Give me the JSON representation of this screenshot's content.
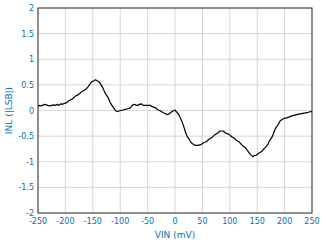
{
  "chart_data": {
    "type": "line",
    "xlabel": "VIN (mV)",
    "ylabel": "INL (|LSB|)",
    "xlim": [
      -250,
      250
    ],
    "ylim": [
      -2,
      2
    ],
    "xticks": [
      -250,
      -200,
      -150,
      -100,
      -50,
      0,
      50,
      100,
      150,
      200,
      250
    ],
    "yticks": [
      -2,
      -1.5,
      -1,
      -0.5,
      0,
      0.5,
      1,
      1.5,
      2
    ],
    "grid": true,
    "x": [
      -250,
      -248,
      -245,
      -242,
      -238,
      -235,
      -232,
      -228,
      -225,
      -222,
      -218,
      -215,
      -212,
      -208,
      -205,
      -202,
      -198,
      -195,
      -192,
      -188,
      -185,
      -182,
      -178,
      -175,
      -172,
      -168,
      -165,
      -162,
      -158,
      -155,
      -152,
      -148,
      -145,
      -142,
      -140,
      -138,
      -135,
      -132,
      -130,
      -128,
      -125,
      -122,
      -120,
      -118,
      -115,
      -112,
      -110,
      -108,
      -105,
      -102,
      -100,
      -98,
      -95,
      -92,
      -90,
      -88,
      -85,
      -82,
      -80,
      -78,
      -75,
      -72,
      -70,
      -68,
      -65,
      -62,
      -60,
      -58,
      -55,
      -52,
      -50,
      -48,
      -45,
      -42,
      -40,
      -38,
      -35,
      -32,
      -30,
      -28,
      -25,
      -22,
      -20,
      -18,
      -15,
      -12,
      -10,
      -8,
      -5,
      -2,
      0,
      2,
      5,
      8,
      10,
      12,
      15,
      18,
      20,
      22,
      25,
      28,
      30,
      32,
      35,
      38,
      40,
      42,
      45,
      48,
      50,
      52,
      55,
      58,
      60,
      62,
      65,
      68,
      70,
      72,
      75,
      78,
      80,
      82,
      85,
      88,
      90,
      92,
      95,
      98,
      100,
      102,
      105,
      108,
      110,
      112,
      115,
      118,
      120,
      122,
      125,
      128,
      130,
      132,
      135,
      138,
      140,
      142,
      145,
      148,
      150,
      152,
      155,
      158,
      160,
      162,
      165,
      168,
      170,
      172,
      175,
      178,
      180,
      182,
      185,
      188,
      190,
      192,
      195,
      198,
      200,
      202,
      205,
      208,
      210,
      212,
      215,
      218,
      220,
      222,
      225,
      228,
      230,
      232,
      235,
      238,
      240,
      242,
      245,
      248,
      250
    ],
    "series": [
      {
        "color": "#000000",
        "values": [
          0.08,
          0.1,
          0.09,
          0.1,
          0.12,
          0.11,
          0.1,
          0.09,
          0.1,
          0.11,
          0.1,
          0.12,
          0.1,
          0.13,
          0.12,
          0.14,
          0.15,
          0.18,
          0.2,
          0.22,
          0.25,
          0.28,
          0.3,
          0.32,
          0.35,
          0.38,
          0.4,
          0.42,
          0.47,
          0.52,
          0.56,
          0.58,
          0.6,
          0.58,
          0.57,
          0.55,
          0.5,
          0.45,
          0.4,
          0.35,
          0.3,
          0.25,
          0.2,
          0.15,
          0.1,
          0.05,
          0.02,
          -0.01,
          -0.02,
          -0.01,
          0.0,
          0.0,
          0.01,
          0.02,
          0.02,
          0.03,
          0.04,
          0.05,
          0.07,
          0.1,
          0.12,
          0.11,
          0.1,
          0.1,
          0.12,
          0.13,
          0.12,
          0.1,
          0.1,
          0.1,
          0.1,
          0.1,
          0.1,
          0.08,
          0.07,
          0.06,
          0.05,
          0.02,
          0.01,
          0.0,
          -0.02,
          -0.04,
          -0.05,
          -0.06,
          -0.08,
          -0.07,
          -0.06,
          -0.04,
          -0.02,
          0.0,
          0.01,
          -0.02,
          -0.05,
          -0.1,
          -0.15,
          -0.2,
          -0.28,
          -0.38,
          -0.45,
          -0.5,
          -0.55,
          -0.6,
          -0.63,
          -0.65,
          -0.67,
          -0.68,
          -0.68,
          -0.68,
          -0.67,
          -0.66,
          -0.65,
          -0.63,
          -0.62,
          -0.6,
          -0.58,
          -0.56,
          -0.54,
          -0.52,
          -0.5,
          -0.48,
          -0.46,
          -0.44,
          -0.42,
          -0.4,
          -0.4,
          -0.4,
          -0.42,
          -0.44,
          -0.45,
          -0.46,
          -0.48,
          -0.5,
          -0.52,
          -0.54,
          -0.56,
          -0.58,
          -0.6,
          -0.62,
          -0.65,
          -0.67,
          -0.7,
          -0.72,
          -0.75,
          -0.78,
          -0.82,
          -0.86,
          -0.88,
          -0.9,
          -0.88,
          -0.87,
          -0.86,
          -0.84,
          -0.82,
          -0.8,
          -0.78,
          -0.75,
          -0.72,
          -0.68,
          -0.65,
          -0.6,
          -0.55,
          -0.5,
          -0.44,
          -0.38,
          -0.32,
          -0.28,
          -0.24,
          -0.2,
          -0.18,
          -0.16,
          -0.15,
          -0.15,
          -0.14,
          -0.13,
          -0.12,
          -0.11,
          -0.1,
          -0.09,
          -0.09,
          -0.08,
          -0.07,
          -0.07,
          -0.06,
          -0.06,
          -0.05,
          -0.05,
          -0.04,
          -0.04,
          -0.03,
          -0.02,
          -0.02
        ]
      }
    ]
  }
}
